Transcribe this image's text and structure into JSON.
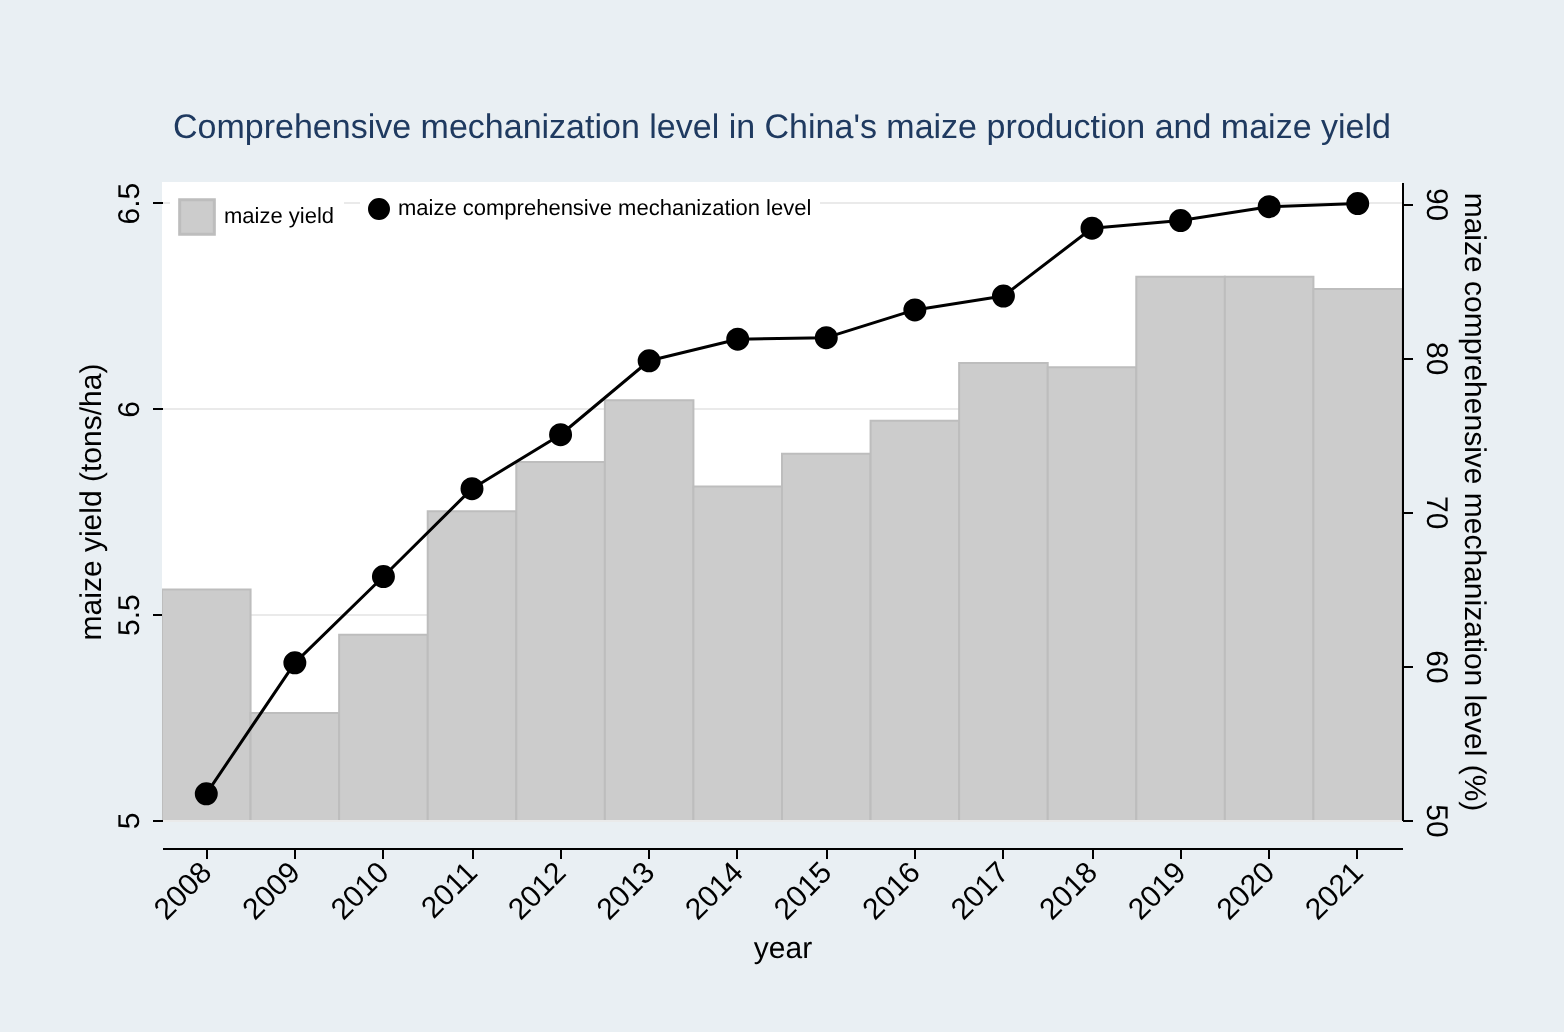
{
  "chart_data": {
    "type": "bar",
    "title": "Comprehensive mechanization level in China's maize production and maize yield",
    "xlabel": "year",
    "ylabel": "maize yield (tons/ha)",
    "y2label": "maize comprehensive mechanization level (%)",
    "categories": [
      "2008",
      "2009",
      "2010",
      "2011",
      "2012",
      "2013",
      "2014",
      "2015",
      "2016",
      "2017",
      "2018",
      "2019",
      "2020",
      "2021"
    ],
    "series": [
      {
        "name": "maize yield",
        "color": "#cccccc",
        "values": [
          5.56,
          5.26,
          5.45,
          5.75,
          5.87,
          6.02,
          5.81,
          5.89,
          5.97,
          6.11,
          6.1,
          6.32,
          6.32,
          6.29
        ]
      },
      {
        "name": "maize comprehensive mechanization level",
        "type": "line",
        "axis": "y2",
        "color": "#000000",
        "values": [
          51.7,
          60.2,
          65.8,
          71.5,
          75.0,
          79.8,
          81.2,
          81.3,
          83.1,
          84.0,
          88.4,
          88.9,
          89.8,
          90.0
        ]
      }
    ],
    "ylim": [
      5,
      6.55
    ],
    "yticks": [
      5,
      5.5,
      6,
      6.5
    ],
    "y2lim": [
      50,
      91.4
    ],
    "y2ticks": [
      50,
      60,
      70,
      80,
      90
    ],
    "grid": "y",
    "legend": "top left",
    "marker": "circle",
    "line_style": "solid"
  }
}
